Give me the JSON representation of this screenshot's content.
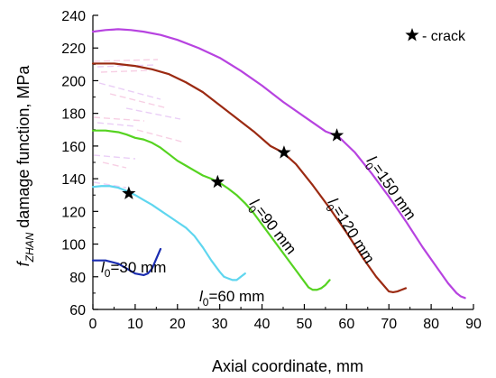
{
  "chart_data": {
    "type": "line",
    "xlabel": "Axial coordinate, mm",
    "ylabel": {
      "prefix": "f",
      "subscript": "ZHAN",
      "suffix": " damage function, MPa"
    },
    "xlim": [
      0,
      90
    ],
    "ylim": [
      60,
      240
    ],
    "xticks": [
      0,
      10,
      20,
      30,
      40,
      50,
      60,
      70,
      80,
      90
    ],
    "yticks": [
      60,
      80,
      100,
      120,
      140,
      160,
      180,
      200,
      220,
      240
    ],
    "grid": false,
    "legend": {
      "position": "top-right",
      "marker": "star",
      "text": " - crack"
    },
    "series": [
      {
        "name": "l0=30 mm",
        "label": {
          "prefix": "l",
          "subscript": "0",
          "suffix": "=30 mm"
        },
        "color": "#1a2cb0",
        "x": [
          0,
          3,
          6,
          8,
          10,
          12,
          13,
          14,
          15,
          16
        ],
        "y": [
          90,
          90,
          88,
          85,
          82,
          81,
          82,
          85,
          91,
          97
        ],
        "crack": null
      },
      {
        "name": "l0=60 mm",
        "label": {
          "prefix": "l",
          "subscript": "0",
          "suffix": "=60 mm"
        },
        "color": "#5fd6ef",
        "x": [
          0,
          2,
          4,
          6,
          8,
          10,
          12,
          14,
          16,
          18,
          20,
          22,
          24,
          26,
          28,
          30,
          31,
          32,
          33,
          34,
          35,
          36
        ],
        "y": [
          135,
          135.5,
          135.5,
          134.5,
          132.5,
          130,
          127,
          124,
          120.5,
          117,
          113.5,
          110,
          105,
          98,
          90,
          83,
          80,
          79,
          78,
          78,
          80,
          82
        ],
        "crack": {
          "x": 8.5,
          "y": 131
        }
      },
      {
        "name": "l0=90 mm",
        "label": {
          "prefix": "l",
          "subscript": "0",
          "suffix": "=90 mm"
        },
        "color": "#55d320",
        "x": [
          0,
          3,
          6,
          8,
          10,
          12,
          14,
          16,
          18,
          20,
          22,
          24,
          26,
          28,
          30,
          32,
          34,
          36,
          38,
          40,
          42,
          44,
          46,
          48,
          50,
          51,
          52,
          53,
          54,
          55,
          56
        ],
        "y": [
          169.5,
          169.5,
          168.5,
          167,
          165,
          164,
          162,
          159,
          155,
          151,
          148,
          145,
          142,
          140,
          137.5,
          134,
          130,
          125,
          119,
          112,
          105,
          98,
          91,
          84,
          77,
          73.5,
          72,
          72,
          73,
          75,
          78
        ],
        "crack": {
          "x": 29.5,
          "y": 138
        }
      },
      {
        "name": "l0=120 mm",
        "label": {
          "prefix": "l",
          "subscript": "0",
          "suffix": "=120 mm"
        },
        "color": "#9b2a12",
        "x": [
          0,
          5,
          10,
          14,
          18,
          22,
          26,
          30,
          34,
          38,
          42,
          45,
          48,
          52,
          56,
          60,
          64,
          67,
          69,
          70,
          71,
          72,
          73,
          74
        ],
        "y": [
          210.5,
          210.5,
          209,
          207,
          204,
          199,
          193,
          185,
          177,
          169,
          160,
          156,
          149,
          136,
          122,
          107,
          91,
          80,
          74,
          71,
          70.5,
          71,
          72,
          73
        ],
        "crack": {
          "x": 45.2,
          "y": 156
        }
      },
      {
        "name": "l0=150 mm",
        "label": {
          "prefix": "l",
          "subscript": "0",
          "suffix": "=150 mm"
        },
        "color": "#b743e0",
        "x": [
          0,
          3,
          6,
          9,
          12,
          16,
          20,
          25,
          30,
          35,
          40,
          45,
          50,
          55,
          58,
          62,
          66,
          70,
          74,
          78,
          81,
          84,
          86,
          87,
          88
        ],
        "y": [
          230,
          231,
          231.5,
          231,
          230,
          228,
          225,
          220,
          214,
          206,
          197,
          187,
          178,
          169,
          166,
          156,
          143,
          129,
          114,
          98,
          87,
          76,
          70,
          68,
          67
        ],
        "crack": {
          "x": 57.7,
          "y": 166.5
        }
      }
    ]
  }
}
